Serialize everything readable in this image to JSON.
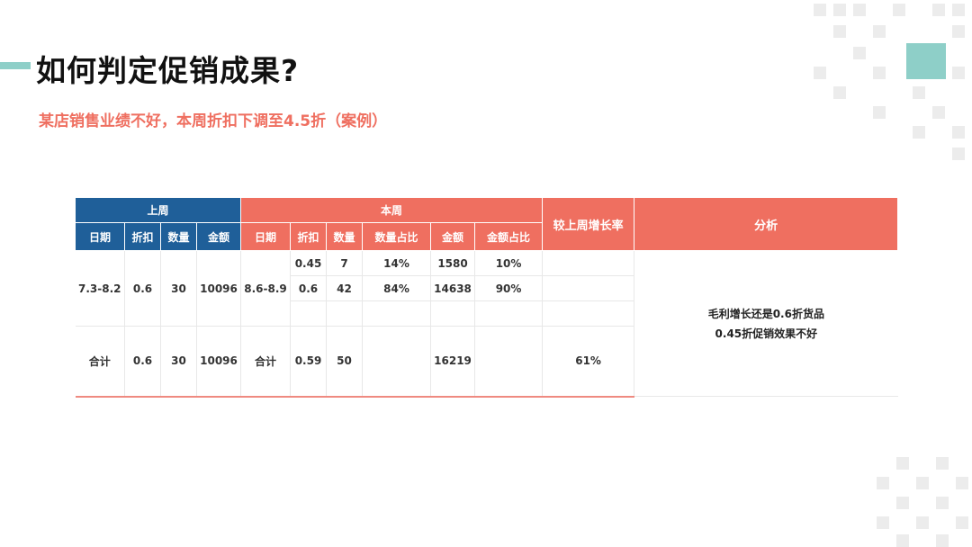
{
  "title": "如何判定促销成果?",
  "subtitle": "某店销售业绩不好，本周折扣下调至4.5折（案例）",
  "table": {
    "group_last_week": "上周",
    "group_this_week": "本周",
    "col_growth": "较上周增长率",
    "col_analysis": "分析",
    "last_week_cols": [
      "日期",
      "折扣",
      "数量",
      "金额"
    ],
    "this_week_cols": [
      "日期",
      "折扣",
      "数量",
      "数量占比",
      "金额",
      "金额占比"
    ],
    "rows": [
      {
        "lw_date": "7.3-8.2",
        "lw_discount": "0.6",
        "lw_qty": "30",
        "lw_amount": "10096",
        "tw_date": "8.6-8.9",
        "items": [
          {
            "discount": "0.45",
            "qty": "7",
            "qty_pct": "14%",
            "amount": "1580",
            "amount_pct": "10%"
          },
          {
            "discount": "0.6",
            "qty": "42",
            "qty_pct": "84%",
            "amount": "14638",
            "amount_pct": "90%"
          }
        ]
      }
    ],
    "total": {
      "lw_label": "合计",
      "lw_discount": "0.6",
      "lw_qty": "30",
      "lw_amount": "10096",
      "tw_label": "合计",
      "tw_discount": "0.59",
      "tw_qty": "50",
      "tw_qty_pct": "",
      "tw_amount": "16219",
      "tw_amount_pct": "",
      "growth": "61%"
    },
    "analysis": [
      "毛利增长还是0.6折货品",
      "0.45折促销效果不好"
    ]
  },
  "colors": {
    "blue_header": "#1f5f99",
    "red_header": "#ef6f60",
    "teal_accent": "#8ecfc8"
  }
}
